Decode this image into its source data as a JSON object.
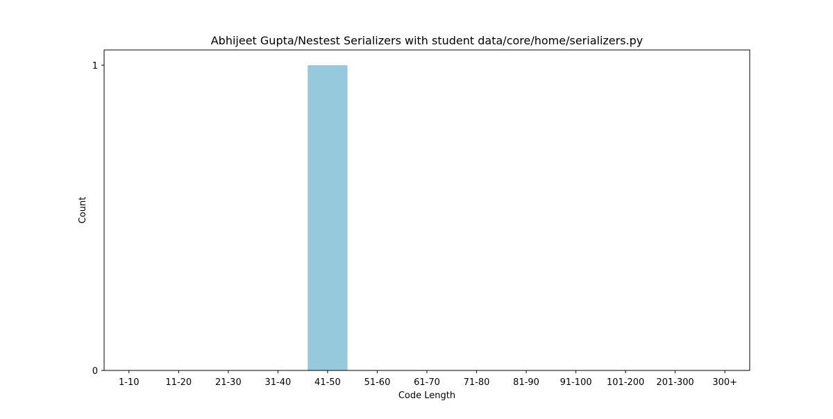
{
  "chart_data": {
    "type": "bar",
    "title": "Abhijeet Gupta/Nestest Serializers with student data/core/home/serializers.py",
    "xlabel": "Code Length",
    "ylabel": "Count",
    "categories": [
      "1-10",
      "11-20",
      "21-30",
      "31-40",
      "41-50",
      "51-60",
      "61-70",
      "71-80",
      "81-90",
      "91-100",
      "101-200",
      "201-300",
      "300+"
    ],
    "values": [
      0,
      0,
      0,
      0,
      1,
      0,
      0,
      0,
      0,
      0,
      0,
      0,
      0
    ],
    "ylim": [
      0,
      1.05
    ],
    "yticks": [
      0,
      1
    ],
    "bar_color": "#96c9dc",
    "grid": false,
    "legend": "none"
  }
}
